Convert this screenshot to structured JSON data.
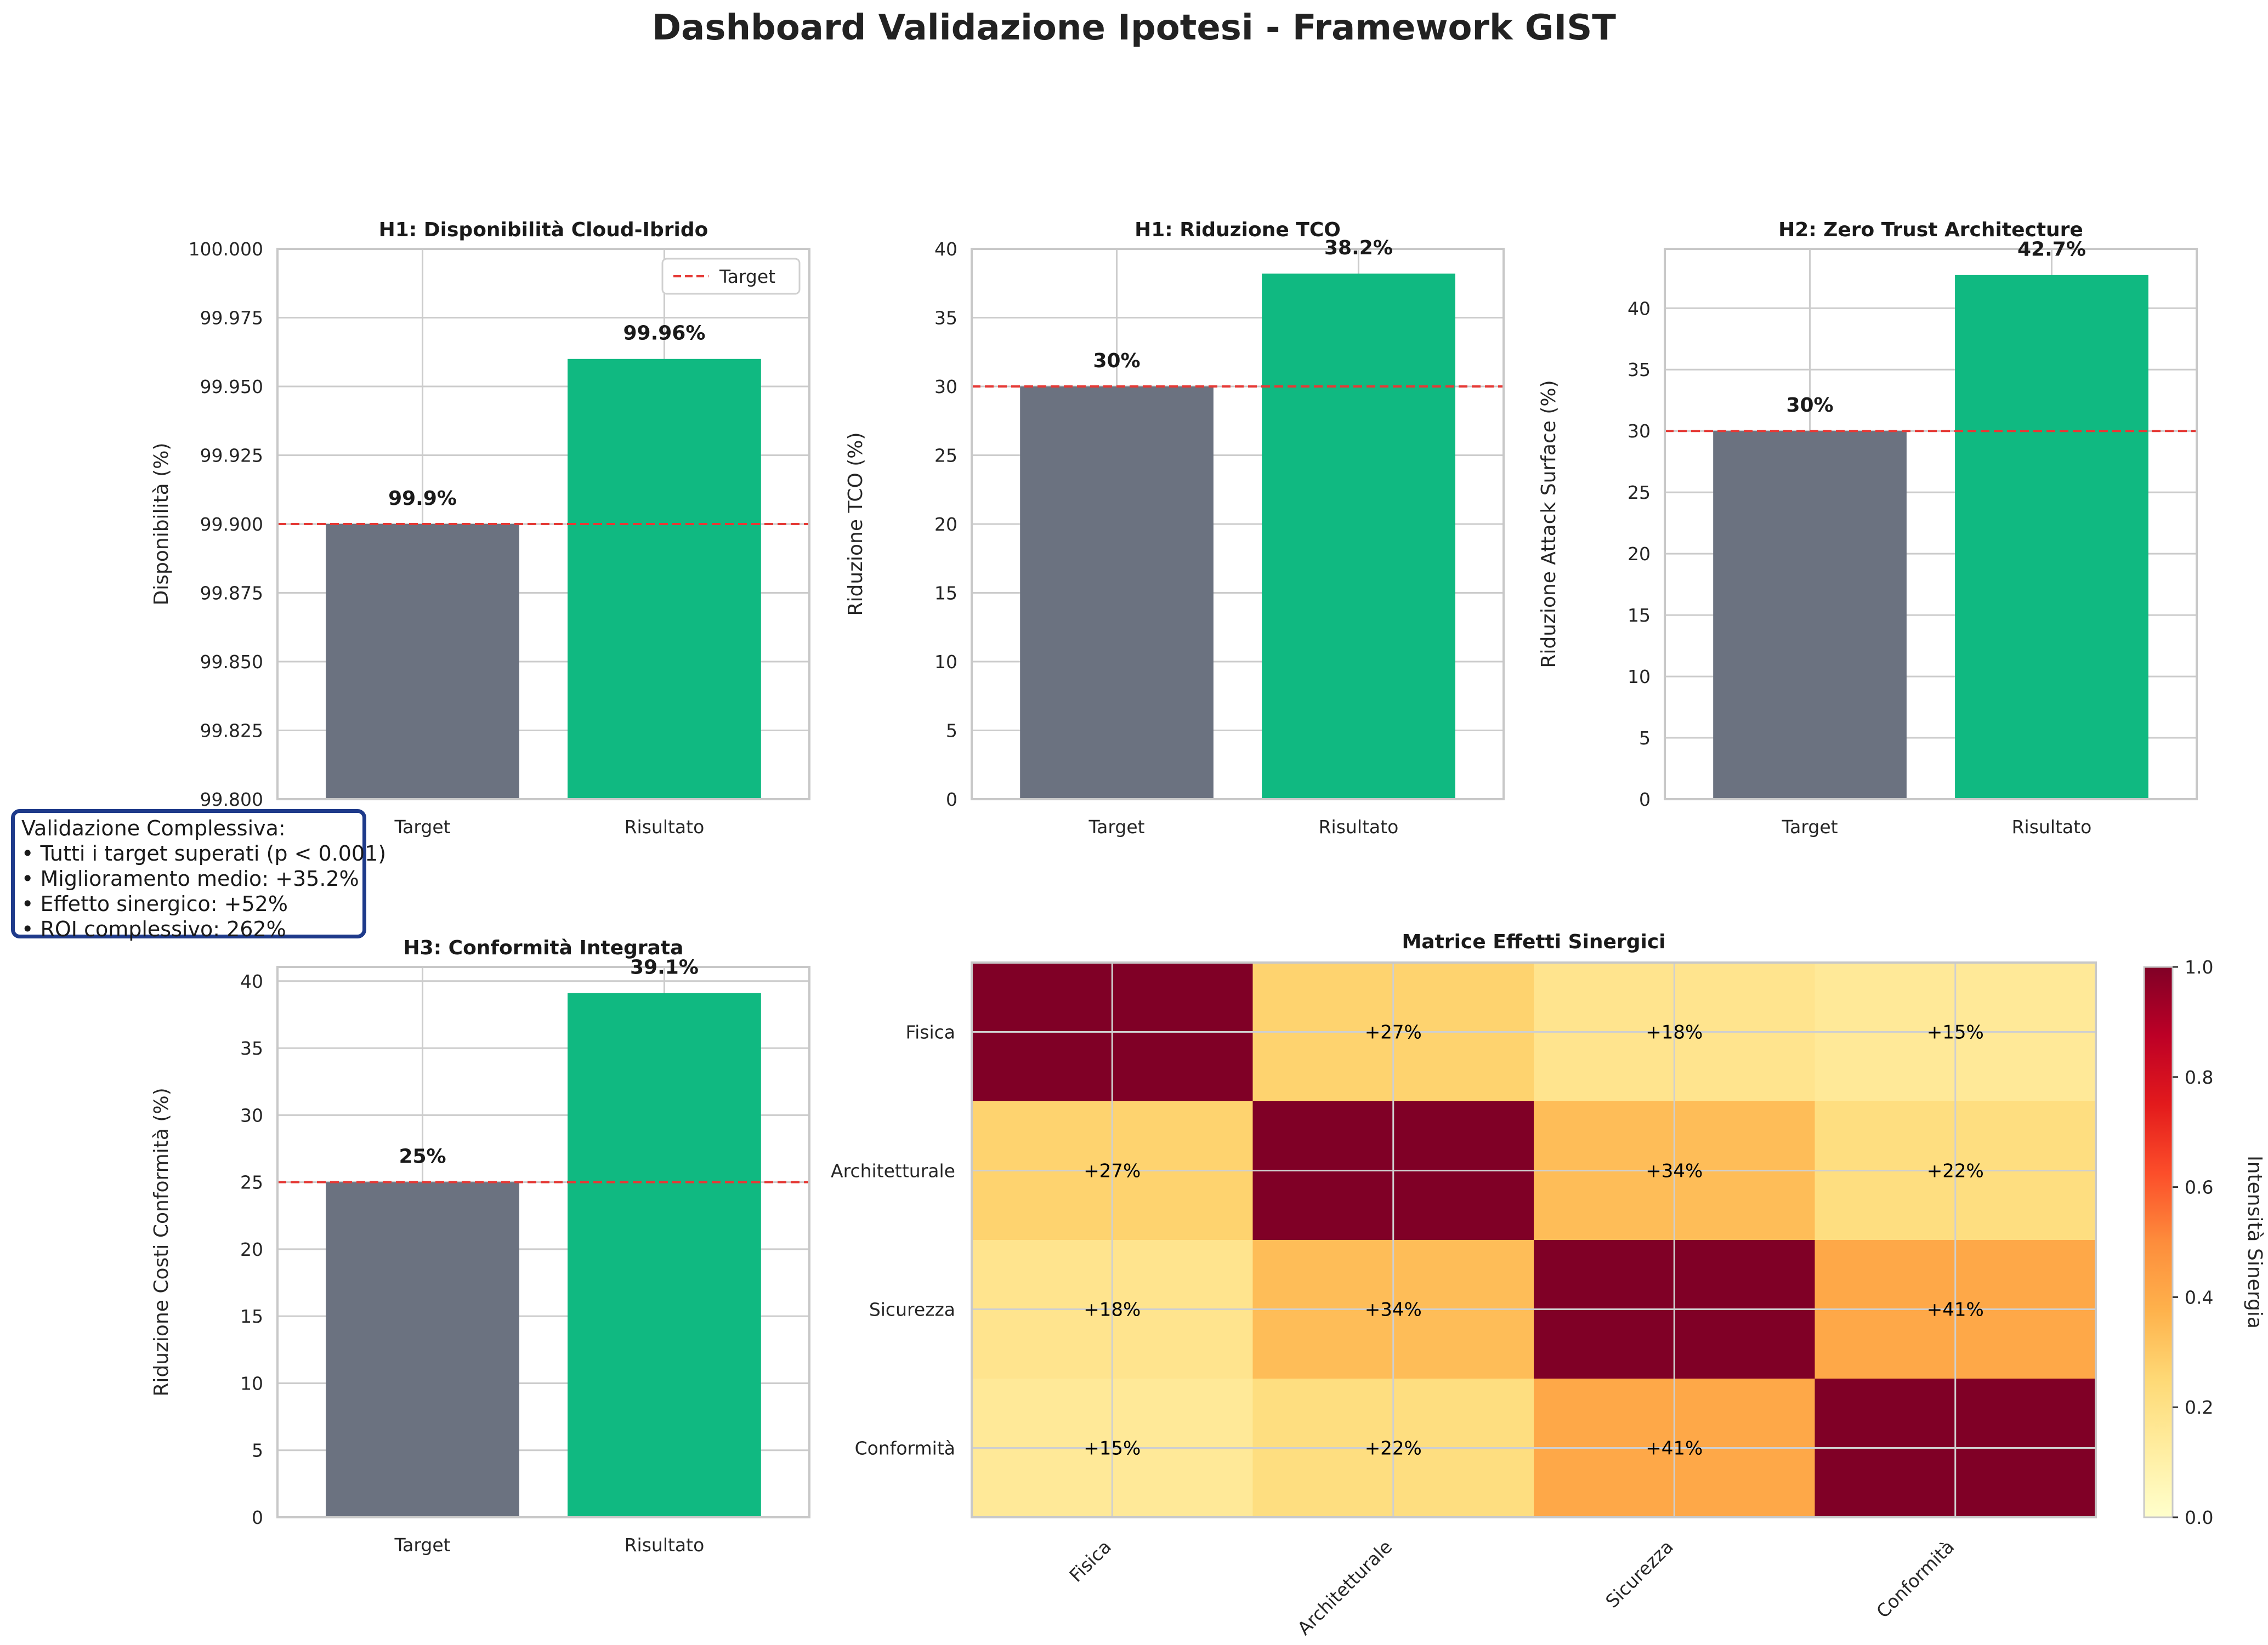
{
  "title": "Dashboard Validazione Ipotesi - Framework GIST",
  "colors": {
    "target_bar": "#6b7280",
    "result_bar": "#10b981",
    "target_line": "#e53935",
    "summary_border": "#1e3a8a"
  },
  "summary": {
    "title": "Validazione Complessiva:",
    "lines": [
      "• Tutti i target superati (p < 0.001)",
      "• Miglioramento medio: +35.2%",
      "• Effetto sinergico: +52%",
      "• ROI complessivo: 262%"
    ]
  },
  "chart_data": [
    {
      "type": "bar",
      "title": "H1: Disponibilità Cloud-Ibrido",
      "ylabel": "Disponibilità (%)",
      "categories": [
        "Target",
        "Risultato"
      ],
      "values": [
        99.9,
        99.96
      ],
      "value_labels": [
        "99.9%",
        "99.96%"
      ],
      "ylim": [
        99.8,
        100.0
      ],
      "yticks": [
        99.8,
        99.825,
        99.85,
        99.875,
        99.9,
        99.925,
        99.95,
        99.975,
        100.0
      ],
      "ytick_labels": [
        "99.800",
        "99.825",
        "99.850",
        "99.875",
        "99.900",
        "99.925",
        "99.950",
        "99.975",
        "100.000"
      ],
      "target_line": 99.9,
      "legend": {
        "label": "Target",
        "placement": "top-right"
      },
      "grid": true
    },
    {
      "type": "bar",
      "title": "H1: Riduzione TCO",
      "ylabel": "Riduzione TCO (%)",
      "categories": [
        "Target",
        "Risultato"
      ],
      "values": [
        30,
        38.2
      ],
      "value_labels": [
        "30%",
        "38.2%"
      ],
      "ylim": [
        0,
        40
      ],
      "yticks": [
        0,
        5,
        10,
        15,
        20,
        25,
        30,
        35,
        40
      ],
      "ytick_labels": [
        "0",
        "5",
        "10",
        "15",
        "20",
        "25",
        "30",
        "35",
        "40"
      ],
      "target_line": 30,
      "grid": true
    },
    {
      "type": "bar",
      "title": "H2: Zero Trust Architecture",
      "ylabel": "Riduzione Attack Surface (%)",
      "categories": [
        "Target",
        "Risultato"
      ],
      "values": [
        30,
        42.7
      ],
      "value_labels": [
        "30%",
        "42.7%"
      ],
      "ylim": [
        0,
        44.835
      ],
      "yticks": [
        0,
        5,
        10,
        15,
        20,
        25,
        30,
        35,
        40
      ],
      "ytick_labels": [
        "0",
        "5",
        "10",
        "15",
        "20",
        "25",
        "30",
        "35",
        "40"
      ],
      "target_line": 30,
      "grid": true
    },
    {
      "type": "bar",
      "title": "H3: Conformità Integrata",
      "ylabel": "Riduzione Costi Conformità (%)",
      "categories": [
        "Target",
        "Risultato"
      ],
      "values": [
        25,
        39.1
      ],
      "value_labels": [
        "25%",
        "39.1%"
      ],
      "ylim": [
        0,
        41.055
      ],
      "yticks": [
        0,
        5,
        10,
        15,
        20,
        25,
        30,
        35,
        40
      ],
      "ytick_labels": [
        "0",
        "5",
        "10",
        "15",
        "20",
        "25",
        "30",
        "35",
        "40"
      ],
      "target_line": 25,
      "grid": true
    },
    {
      "type": "heatmap",
      "title": "Matrice Effetti Sinergici",
      "rows": [
        "Fisica",
        "Architetturale",
        "Sicurezza",
        "Conformità"
      ],
      "columns": [
        "Fisica",
        "Architetturale",
        "Sicurezza",
        "Conformità"
      ],
      "values": [
        [
          1.0,
          0.27,
          0.18,
          0.15
        ],
        [
          0.27,
          1.0,
          0.34,
          0.22
        ],
        [
          0.18,
          0.34,
          1.0,
          0.41
        ],
        [
          0.15,
          0.22,
          0.41,
          1.0
        ]
      ],
      "cell_labels": [
        [
          "",
          "+27%",
          "+18%",
          "+15%"
        ],
        [
          "+27%",
          "",
          "+34%",
          "+22%"
        ],
        [
          "+18%",
          "+34%",
          "",
          "+41%"
        ],
        [
          "+15%",
          "+22%",
          "+41%",
          ""
        ]
      ],
      "colormap": "YlOrRd",
      "colorbar": {
        "label": "Intensità Sinergia",
        "range": [
          0,
          1
        ],
        "ticks": [
          0.0,
          0.2,
          0.4,
          0.6,
          0.8,
          1.0
        ],
        "tick_labels": [
          "0.0",
          "0.2",
          "0.4",
          "0.6",
          "0.8",
          "1.0"
        ]
      }
    }
  ]
}
